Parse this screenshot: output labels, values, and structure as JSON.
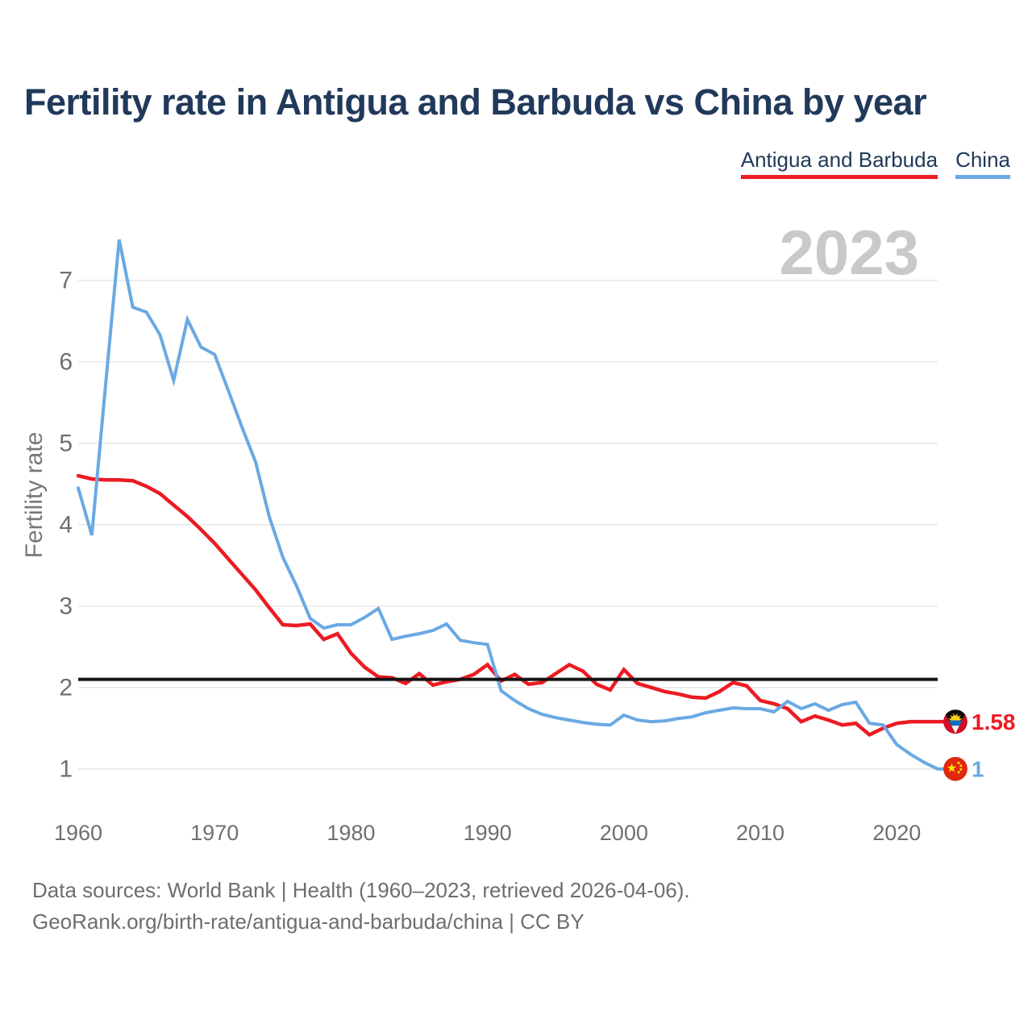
{
  "header": {
    "title": "Fertility rate in Antigua and Barbuda vs China by year"
  },
  "legend": [
    {
      "label": "Antigua and Barbuda",
      "color": "#ec1b23"
    },
    {
      "label": "China",
      "color": "#6aa9e3"
    }
  ],
  "watermark": "2023",
  "chart_data": {
    "type": "line",
    "title": "Fertility rate in Antigua and Barbuda vs China by year",
    "xlabel": "",
    "ylabel": "Fertility rate",
    "xlim": [
      1960,
      2023
    ],
    "ylim": [
      0.8,
      7.6
    ],
    "x_ticks": [
      1960,
      1970,
      1980,
      1990,
      2000,
      2010,
      2020
    ],
    "y_ticks": [
      1,
      2,
      3,
      4,
      5,
      6,
      7
    ],
    "grid": "horizontal",
    "legend_position": "top-right",
    "reference_line": {
      "name": "replacement-level-line",
      "value": 2.1,
      "color": "#141414"
    },
    "x": [
      1960,
      1961,
      1962,
      1963,
      1964,
      1965,
      1966,
      1967,
      1968,
      1969,
      1970,
      1971,
      1972,
      1973,
      1974,
      1975,
      1976,
      1977,
      1978,
      1979,
      1980,
      1981,
      1982,
      1983,
      1984,
      1985,
      1986,
      1987,
      1988,
      1989,
      1990,
      1991,
      1992,
      1993,
      1994,
      1995,
      1996,
      1997,
      1998,
      1999,
      2000,
      2001,
      2002,
      2003,
      2004,
      2005,
      2006,
      2007,
      2008,
      2009,
      2010,
      2011,
      2012,
      2013,
      2014,
      2015,
      2016,
      2017,
      2018,
      2019,
      2020,
      2021,
      2022,
      2023
    ],
    "series": [
      {
        "name": "Antigua and Barbuda",
        "color": "#ec1b23",
        "flag": "antigua-and-barbuda-flag-icon",
        "end_label": "1.58",
        "end_value": 1.58,
        "values": [
          4.6,
          4.56,
          4.55,
          4.55,
          4.54,
          4.47,
          4.38,
          4.24,
          4.1,
          3.94,
          3.77,
          3.58,
          3.39,
          3.2,
          2.98,
          2.77,
          2.76,
          2.78,
          2.59,
          2.66,
          2.42,
          2.25,
          2.13,
          2.12,
          2.05,
          2.17,
          2.03,
          2.07,
          2.1,
          2.16,
          2.28,
          2.08,
          2.16,
          2.04,
          2.06,
          2.17,
          2.28,
          2.2,
          2.04,
          1.97,
          2.22,
          2.05,
          2.0,
          1.95,
          1.92,
          1.88,
          1.87,
          1.95,
          2.06,
          2.02,
          1.84,
          1.8,
          1.74,
          1.58,
          1.65,
          1.6,
          1.54,
          1.56,
          1.42,
          1.5,
          1.56,
          1.58,
          1.58,
          1.58
        ]
      },
      {
        "name": "China",
        "color": "#6aa9e3",
        "flag": "china-flag-icon",
        "end_label": "1",
        "end_value": 1.0,
        "values": [
          4.45,
          3.87,
          5.7,
          7.5,
          6.67,
          6.61,
          6.33,
          5.77,
          6.52,
          6.18,
          6.09,
          5.65,
          5.2,
          4.77,
          4.1,
          3.6,
          3.25,
          2.85,
          2.73,
          2.77,
          2.77,
          2.86,
          2.97,
          2.59,
          2.63,
          2.66,
          2.7,
          2.78,
          2.58,
          2.55,
          2.53,
          1.96,
          1.84,
          1.74,
          1.67,
          1.63,
          1.6,
          1.57,
          1.55,
          1.54,
          1.66,
          1.6,
          1.58,
          1.59,
          1.62,
          1.64,
          1.69,
          1.72,
          1.75,
          1.74,
          1.74,
          1.7,
          1.83,
          1.74,
          1.8,
          1.72,
          1.79,
          1.82,
          1.56,
          1.54,
          1.3,
          1.18,
          1.08,
          1.0
        ]
      }
    ]
  },
  "footer": {
    "line1": "Data sources: World Bank | Health (1960–2023, retrieved 2026-04-06).",
    "line2": "GeoRank.org/birth-rate/antigua-and-barbuda/china | CC BY"
  },
  "style": {
    "title_color": "#21395a",
    "tick_color": "#6f6f6f",
    "grid_color": "#e8e8e8",
    "watermark_color": "#c9c9c9",
    "background": "#ffffff"
  }
}
